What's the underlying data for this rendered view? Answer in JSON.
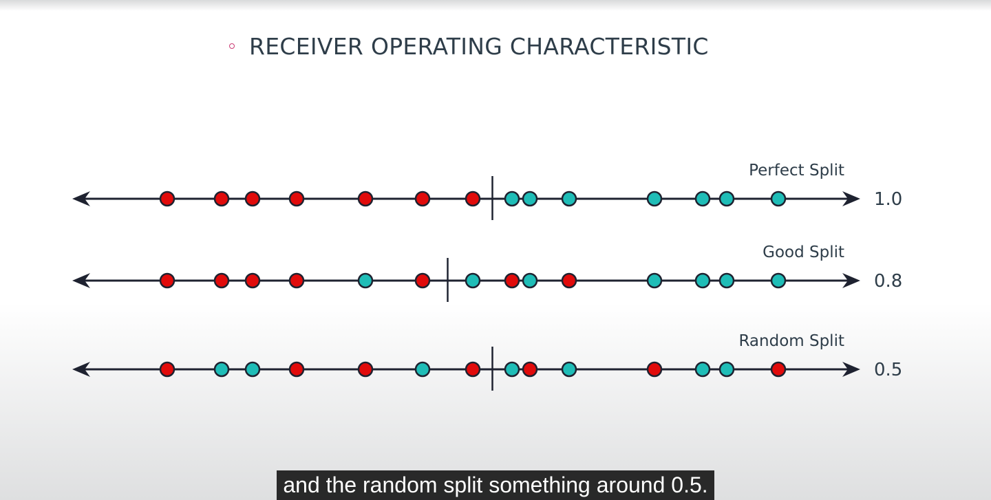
{
  "slide": {
    "title": "RECEIVER OPERATING CHARACTERISTIC"
  },
  "colors": {
    "negative": "#e10b0b",
    "positive": "#1fbdb7",
    "ink": "#1e2230",
    "label": "#2e3d49"
  },
  "rows": [
    {
      "label": "Perfect Split",
      "score": "1.0",
      "threshold_after": 7,
      "points": [
        "neg",
        "neg",
        "neg",
        "neg",
        "neg",
        "neg",
        "neg",
        "pos",
        "pos",
        "pos",
        "pos",
        "pos",
        "pos",
        "pos"
      ]
    },
    {
      "label": "Good Split",
      "score": "0.8",
      "threshold_after": 6,
      "points": [
        "neg",
        "neg",
        "neg",
        "neg",
        "pos",
        "neg",
        "pos",
        "neg",
        "pos",
        "neg",
        "pos",
        "pos",
        "pos",
        "pos"
      ]
    },
    {
      "label": "Random Split",
      "score": "0.5",
      "threshold_after": 7,
      "points": [
        "neg",
        "pos",
        "pos",
        "neg",
        "neg",
        "pos",
        "neg",
        "pos",
        "neg",
        "pos",
        "neg",
        "pos",
        "pos",
        "neg"
      ]
    }
  ],
  "caption": {
    "text": "and the random split something around 0.5."
  }
}
